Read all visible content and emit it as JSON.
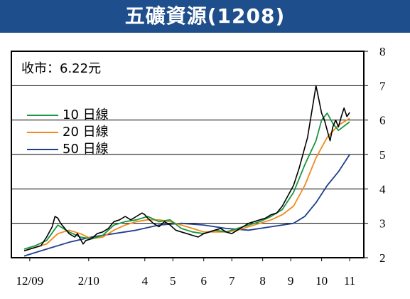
{
  "header": {
    "title": "五礦資源(1208)"
  },
  "price": {
    "label": "收市：6.22元"
  },
  "colors": {
    "header_bg": "#1f4e8c",
    "price": "#000000",
    "ma10": "#1a9641",
    "ma20": "#f08a1c",
    "ma50": "#1f3f8c",
    "grid": "#000000"
  },
  "chart_data": {
    "type": "line",
    "title": "五礦資源(1208)",
    "ylim": [
      2,
      8
    ],
    "yticks": [
      "2",
      "3",
      "4",
      "5",
      "6",
      "7",
      "8"
    ],
    "x_ticks": [
      {
        "label": "12/09",
        "t": 2
      },
      {
        "label": "2/10",
        "t": 23
      },
      {
        "label": "4",
        "t": 43
      },
      {
        "label": "5",
        "t": 53
      },
      {
        "label": "6",
        "t": 64
      },
      {
        "label": "7",
        "t": 74
      },
      {
        "label": "8",
        "t": 85
      },
      {
        "label": "9",
        "t": 95
      },
      {
        "label": "10",
        "t": 106
      },
      {
        "label": "11",
        "t": 116
      }
    ],
    "grid": "horizontal",
    "legend_position": "left",
    "series": [
      {
        "name": "10 日線",
        "key": "ma10",
        "points": [
          [
            0,
            2.25
          ],
          [
            4,
            2.35
          ],
          [
            8,
            2.5
          ],
          [
            12,
            2.95
          ],
          [
            16,
            2.75
          ],
          [
            20,
            2.6
          ],
          [
            24,
            2.55
          ],
          [
            28,
            2.65
          ],
          [
            32,
            2.95
          ],
          [
            36,
            3.05
          ],
          [
            40,
            3.1
          ],
          [
            44,
            3.2
          ],
          [
            48,
            3.05
          ],
          [
            52,
            3.1
          ],
          [
            56,
            2.85
          ],
          [
            60,
            2.75
          ],
          [
            64,
            2.7
          ],
          [
            68,
            2.8
          ],
          [
            72,
            2.75
          ],
          [
            76,
            2.85
          ],
          [
            80,
            2.95
          ],
          [
            84,
            3.05
          ],
          [
            88,
            3.2
          ],
          [
            92,
            3.4
          ],
          [
            96,
            3.9
          ],
          [
            100,
            4.7
          ],
          [
            104,
            5.4
          ],
          [
            106,
            6.0
          ],
          [
            108,
            6.2
          ],
          [
            110,
            5.9
          ],
          [
            112,
            5.7
          ],
          [
            116,
            5.95
          ]
        ]
      },
      {
        "name": "20 日線",
        "key": "ma20",
        "points": [
          [
            0,
            2.2
          ],
          [
            4,
            2.3
          ],
          [
            8,
            2.4
          ],
          [
            12,
            2.7
          ],
          [
            16,
            2.8
          ],
          [
            20,
            2.7
          ],
          [
            24,
            2.55
          ],
          [
            28,
            2.6
          ],
          [
            32,
            2.8
          ],
          [
            36,
            2.95
          ],
          [
            40,
            3.05
          ],
          [
            44,
            3.1
          ],
          [
            48,
            3.1
          ],
          [
            52,
            3.05
          ],
          [
            56,
            2.95
          ],
          [
            60,
            2.85
          ],
          [
            64,
            2.75
          ],
          [
            68,
            2.75
          ],
          [
            72,
            2.75
          ],
          [
            76,
            2.8
          ],
          [
            80,
            2.9
          ],
          [
            84,
            3.0
          ],
          [
            88,
            3.1
          ],
          [
            92,
            3.25
          ],
          [
            96,
            3.5
          ],
          [
            100,
            4.1
          ],
          [
            104,
            4.9
          ],
          [
            108,
            5.5
          ],
          [
            112,
            5.85
          ],
          [
            116,
            6.05
          ]
        ]
      },
      {
        "name": "50 日線",
        "key": "ma50",
        "points": [
          [
            0,
            2.05
          ],
          [
            8,
            2.25
          ],
          [
            16,
            2.45
          ],
          [
            24,
            2.6
          ],
          [
            32,
            2.7
          ],
          [
            40,
            2.8
          ],
          [
            48,
            2.95
          ],
          [
            56,
            3.0
          ],
          [
            64,
            2.95
          ],
          [
            72,
            2.85
          ],
          [
            80,
            2.8
          ],
          [
            88,
            2.9
          ],
          [
            96,
            3.0
          ],
          [
            100,
            3.2
          ],
          [
            104,
            3.6
          ],
          [
            108,
            4.1
          ],
          [
            112,
            4.5
          ],
          [
            116,
            5.0
          ]
        ]
      },
      {
        "key": "price",
        "points": [
          [
            0,
            2.2
          ],
          [
            2,
            2.25
          ],
          [
            4,
            2.3
          ],
          [
            6,
            2.35
          ],
          [
            8,
            2.6
          ],
          [
            10,
            2.9
          ],
          [
            11,
            3.2
          ],
          [
            12,
            3.15
          ],
          [
            13,
            3.0
          ],
          [
            14,
            2.9
          ],
          [
            16,
            2.7
          ],
          [
            18,
            2.6
          ],
          [
            19,
            2.7
          ],
          [
            20,
            2.55
          ],
          [
            21,
            2.4
          ],
          [
            22,
            2.5
          ],
          [
            24,
            2.55
          ],
          [
            26,
            2.7
          ],
          [
            28,
            2.75
          ],
          [
            30,
            2.85
          ],
          [
            32,
            3.05
          ],
          [
            34,
            3.1
          ],
          [
            36,
            3.2
          ],
          [
            38,
            3.1
          ],
          [
            40,
            3.2
          ],
          [
            42,
            3.3
          ],
          [
            43,
            3.25
          ],
          [
            44,
            3.15
          ],
          [
            46,
            3.0
          ],
          [
            48,
            2.9
          ],
          [
            50,
            3.05
          ],
          [
            52,
            2.95
          ],
          [
            54,
            2.8
          ],
          [
            56,
            2.75
          ],
          [
            58,
            2.7
          ],
          [
            60,
            2.65
          ],
          [
            62,
            2.6
          ],
          [
            64,
            2.7
          ],
          [
            66,
            2.75
          ],
          [
            68,
            2.8
          ],
          [
            70,
            2.85
          ],
          [
            72,
            2.75
          ],
          [
            74,
            2.7
          ],
          [
            76,
            2.8
          ],
          [
            78,
            2.9
          ],
          [
            80,
            3.0
          ],
          [
            82,
            3.05
          ],
          [
            84,
            3.1
          ],
          [
            86,
            3.15
          ],
          [
            88,
            3.25
          ],
          [
            90,
            3.3
          ],
          [
            92,
            3.5
          ],
          [
            94,
            3.8
          ],
          [
            96,
            4.1
          ],
          [
            98,
            4.6
          ],
          [
            100,
            5.2
          ],
          [
            101,
            5.5
          ],
          [
            102,
            6.0
          ],
          [
            103,
            6.5
          ],
          [
            104,
            7.0
          ],
          [
            105,
            6.6
          ],
          [
            106,
            6.2
          ],
          [
            107,
            6.0
          ],
          [
            108,
            5.7
          ],
          [
            109,
            5.4
          ],
          [
            110,
            5.8
          ],
          [
            111,
            6.0
          ],
          [
            112,
            5.8
          ],
          [
            113,
            6.1
          ],
          [
            114,
            6.35
          ],
          [
            115,
            6.1
          ],
          [
            116,
            6.22
          ]
        ]
      }
    ]
  }
}
